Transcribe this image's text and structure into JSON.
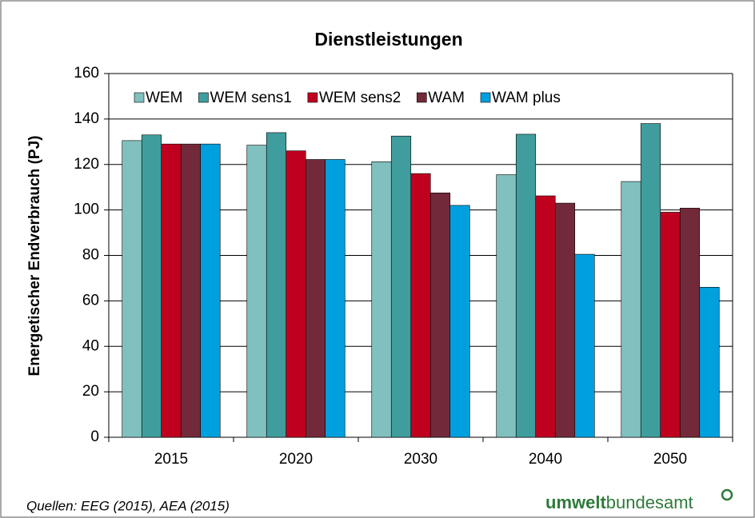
{
  "chart_data": {
    "type": "bar",
    "title": "Dienstleistungen",
    "y_label": "Energetischer Endverbrauch (PJ)",
    "categories": [
      "2015",
      "2020",
      "2030",
      "2040",
      "2050"
    ],
    "series": [
      {
        "name": "WEM",
        "color": "#80c0bf",
        "values": [
          130.5,
          128.5,
          121.2,
          115.5,
          112.5
        ]
      },
      {
        "name": "WEM sens1",
        "color": "#3f9e9d",
        "values": [
          133,
          134,
          132.5,
          133.3,
          138
        ]
      },
      {
        "name": "WEM sens2",
        "color": "#c0001f",
        "values": [
          129,
          126,
          116,
          106.2,
          99
        ]
      },
      {
        "name": "WAM",
        "color": "#722a3a",
        "values": [
          129,
          122.2,
          107.5,
          103,
          100.8
        ]
      },
      {
        "name": "WAM plus",
        "color": "#00a0df",
        "values": [
          129,
          122.2,
          102,
          80.5,
          66
        ]
      }
    ],
    "ylim": [
      0,
      160
    ],
    "yticks": [
      0,
      20,
      40,
      60,
      80,
      100,
      120,
      140,
      160
    ],
    "grid": true,
    "legend": "top-left",
    "source": "Quellen: EEG (2015), AEA (2015)",
    "logo": {
      "bold": "umwelt",
      "regular": "bundesamt"
    }
  }
}
